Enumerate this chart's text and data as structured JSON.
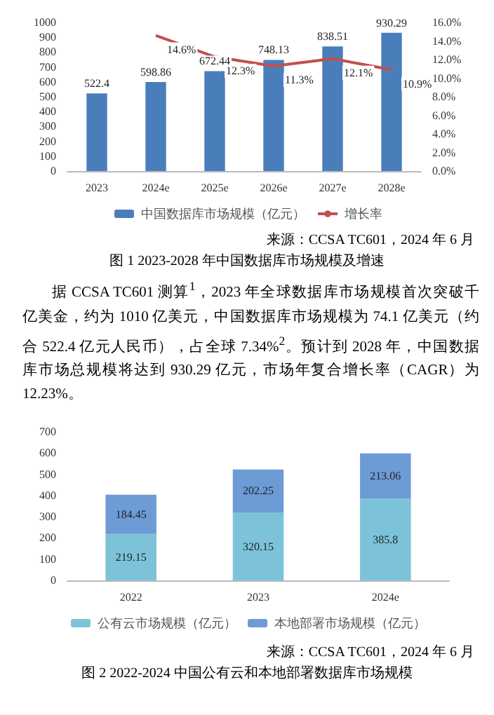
{
  "chart_data": [
    {
      "type": "bar",
      "title": "图 1 2023-2028 年中国数据库市场规模及增速",
      "categories": [
        "2023",
        "2024e",
        "2025e",
        "2026e",
        "2027e",
        "2028e"
      ],
      "series": [
        {
          "name": "中国数据库市场规模（亿元）",
          "color": "#4a7ebb",
          "values": [
            522.4,
            598.86,
            672.44,
            748.13,
            838.51,
            930.29
          ],
          "data_labels": true
        },
        {
          "name": "增长率",
          "type": "line",
          "axis": "y2",
          "color": "#c0504d",
          "marker": "none",
          "values": [
            null,
            14.6,
            12.3,
            11.3,
            12.1,
            10.9
          ],
          "value_labels": [
            null,
            "14.6%",
            "12.3%",
            "11.3%",
            "12.1%",
            "10.9%"
          ]
        }
      ],
      "ylim": [
        0,
        1000
      ],
      "yticks": [
        0,
        100,
        200,
        300,
        400,
        500,
        600,
        700,
        800,
        900,
        1000
      ],
      "y2lim": [
        0,
        16
      ],
      "y2ticks": [
        {
          "value": 0,
          "label": "0.0%"
        },
        {
          "value": 2,
          "label": "2.0%"
        },
        {
          "value": 4,
          "label": "4.0%"
        },
        {
          "value": 6,
          "label": "6.0%"
        },
        {
          "value": 8,
          "label": "8.0%"
        },
        {
          "value": 10,
          "label": "10.0%"
        },
        {
          "value": 12,
          "label": "12.0%"
        },
        {
          "value": 14,
          "label": "14.0%"
        },
        {
          "value": 16,
          "label": "16.0%"
        }
      ],
      "legend": "bottom",
      "grid": false,
      "annotations": [
        "来源：CCSA TC601，2024 年 6 月",
        "据 CCSA TC601 测算$^{1}$，2023 年全球数据库市场规模首次突破千亿美金，约为 1010 亿美元，中国数据库市场规模为 74.1 亿美元（约合 522.4 亿元人民币），占全球 7.34%$^{2}$。预计到 2028 年，中国数据库市场总规模将达到 930.29 亿元，市场年复合增长率（CAGR）为 12.23%。"
      ]
    },
    {
      "type": "bar",
      "title": "图 2 2022-2024 中国公有云和本地部署数据库市场规模",
      "categories": [
        "2022",
        "2023",
        "2024e"
      ],
      "stacked": true,
      "data_labels": true,
      "series": [
        {
          "name": "公有云市场规模（亿元）",
          "color": "#7cc3d9",
          "values": [
            219.15,
            320.15,
            385.8
          ]
        },
        {
          "name": "本地部署市场规模（亿元）",
          "color": "#6d9bd6",
          "values": [
            184.45,
            202.25,
            213.06
          ]
        }
      ],
      "ylim": [
        0,
        700
      ],
      "yticks": [
        0,
        100,
        200,
        300,
        400,
        500,
        600,
        700
      ],
      "legend": "bottom",
      "grid": false,
      "annotations": [
        "来源：CCSA TC601，2024 年 6 月"
      ]
    }
  ]
}
